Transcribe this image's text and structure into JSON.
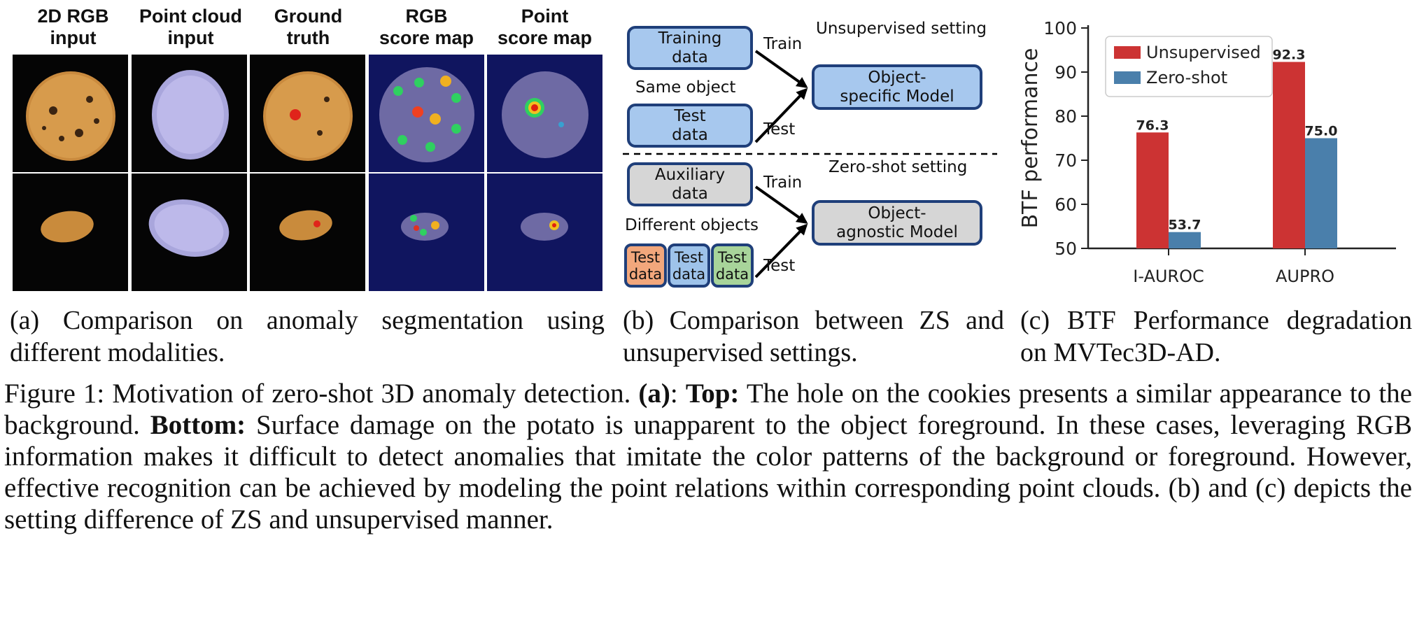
{
  "panel_a": {
    "headers": [
      "2D RGB\ninput",
      "Point cloud\ninput",
      "Ground\ntruth",
      "RGB\nscore map",
      "Point\nscore map"
    ],
    "rows": [
      "cookie",
      "potato"
    ],
    "caption": "(a) Comparison on anomaly segmentation using different modalities."
  },
  "panel_b": {
    "unsup_title": "Unsupervised setting",
    "zs_title": "Zero-shot setting",
    "training_data": "Training\ndata",
    "test_data": "Test\ndata",
    "same_object": "Same object",
    "object_specific_model": "Object-\nspecific Model",
    "auxiliary_data": "Auxiliary\ndata",
    "different_objects": "Different objects",
    "object_agnostic_model": "Object-\nagnostic Model",
    "train_label": "Train",
    "test_label": "Test",
    "small_test_data": [
      "Test\ndata",
      "Test\ndata",
      "Test\ndata"
    ],
    "small_test_colors": [
      "#f2a77c",
      "#9ec3ea",
      "#a8d49a"
    ],
    "caption": "(b) Comparison between ZS and unsupervised settings."
  },
  "chart_data": {
    "type": "bar",
    "categories": [
      "I-AUROC",
      "AUPRO"
    ],
    "series": [
      {
        "name": "Unsupervised",
        "values": [
          76.3,
          92.3
        ],
        "color": "#cc3333"
      },
      {
        "name": "Zero-shot",
        "values": [
          53.7,
          75.0
        ],
        "color": "#4a7fab"
      }
    ],
    "value_labels": [
      [
        "76.3",
        "92.3"
      ],
      [
        "53.7",
        "75.0"
      ]
    ],
    "ylabel": "BTF performance",
    "ylim": [
      50,
      100
    ],
    "yticks": [
      "50",
      "60",
      "70",
      "80",
      "90",
      "100"
    ],
    "legend_position": "top-left",
    "caption": "(c) BTF Performance degradation on MVTec3D-AD."
  },
  "figure_caption": {
    "prefix": "Figure 1: Motivation of zero-shot 3D anomaly detection. ",
    "a_label": "(a)",
    "colon": ": ",
    "top_label": "Top:",
    "top_text": " The hole on the cookies presents a similar appearance to the background. ",
    "bottom_label": "Bottom:",
    "rest": " Surface damage on the potato is unapparent to the object foreground. In these cases, leveraging RGB information makes it difficult to detect anomalies that imitate the color patterns of the background or foreground. However, effective recognition can be achieved by modeling the point relations within corresponding point clouds. (b) and (c) depicts the setting difference of ZS and unsupervised manner."
  }
}
